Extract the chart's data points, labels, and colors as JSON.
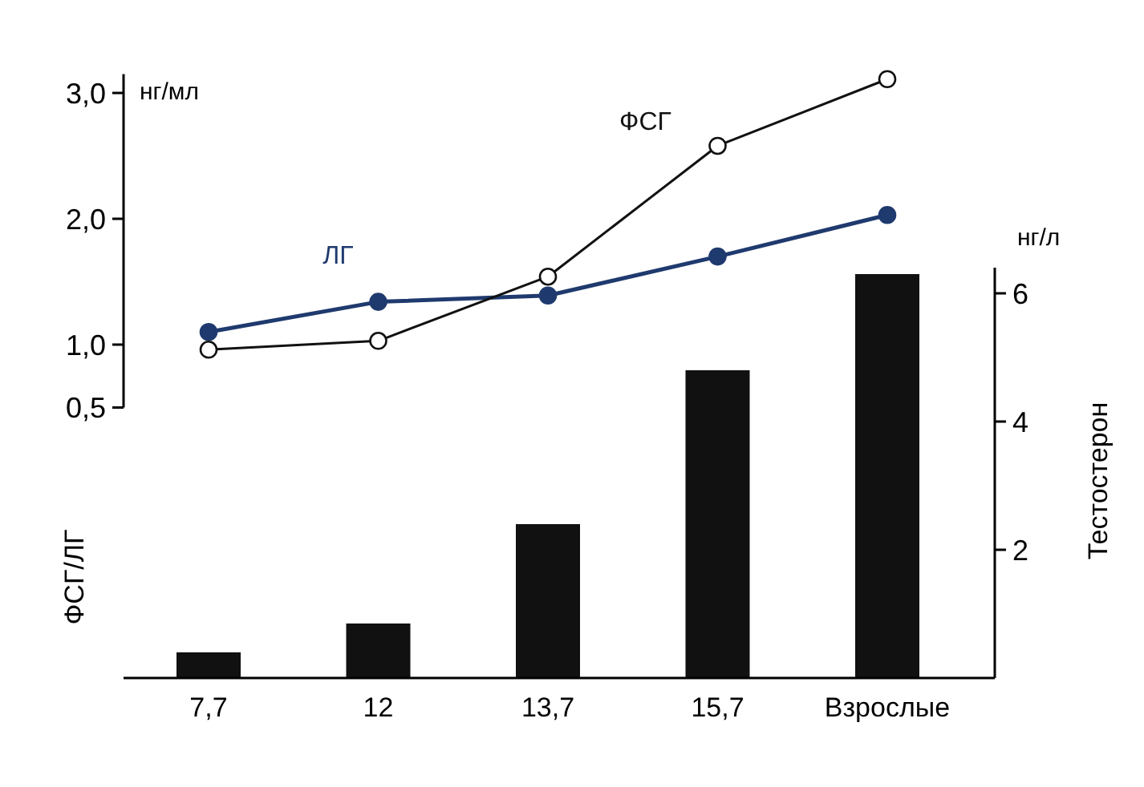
{
  "chart_data": [
    {
      "type": "line",
      "categories": [
        null,
        null,
        null,
        null,
        null
      ],
      "tick_labels": "y",
      "ylabel": "ФСГ/ЛГ",
      "annotations": [
        "нг/мл"
      ],
      "ylim": [
        0.5,
        3.15
      ],
      "yticks": [
        {
          "value": 0.5,
          "label": "0,5"
        },
        {
          "value": 1,
          "label": "1,0"
        },
        {
          "value": 2,
          "label": "2,0"
        },
        {
          "value": 3,
          "label": "3,0"
        }
      ],
      "grid": false,
      "legend": false,
      "marker": "circle",
      "series": [
        {
          "name": "ЛГ",
          "color": "#1f3a6e",
          "values": [
            1.1,
            1.34,
            1.39,
            1.7,
            2.03
          ]
        },
        {
          "name": "ФСГ",
          "color": "#111111",
          "values": [
            0.96,
            1.03,
            1.54,
            2.58,
            3.11
          ]
        }
      ]
    },
    {
      "type": "bar",
      "categories": [
        "7,7",
        "12",
        "13,7",
        "15,7",
        "Взрослые"
      ],
      "ylabel": "Тестостерон",
      "annotations": [
        "нг/л"
      ],
      "ylim": [
        0,
        6.4
      ],
      "yticks": [
        2,
        4,
        6
      ],
      "grid": false,
      "legend": false,
      "color": "#111111",
      "values": [
        0.4,
        0.85,
        2.4,
        4.8,
        6.3
      ]
    }
  ]
}
